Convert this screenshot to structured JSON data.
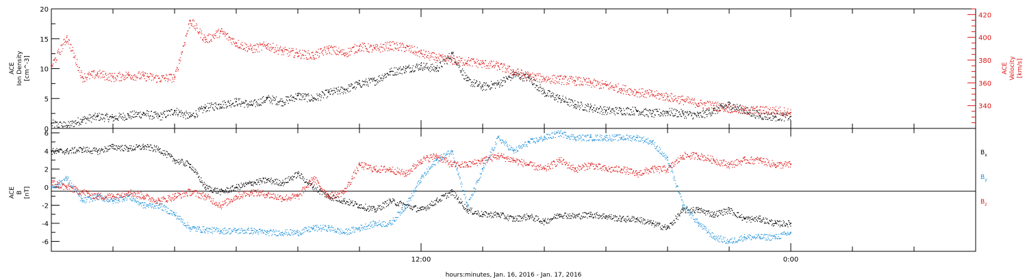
{
  "chart_data": [
    {
      "type": "scatter",
      "panel": "top",
      "ylabel_left": [
        "ACE",
        "Ion Density",
        "[cm^-3]"
      ],
      "ylabel_right": [
        "ACE",
        "Velocity",
        "[km/s]"
      ],
      "x_unit": "hours from 2016-01-16 00:00",
      "xlim": [
        0,
        30
      ],
      "ylim_left": [
        0,
        20
      ],
      "ylim_right": [
        320,
        425
      ],
      "left_ticks": [
        0,
        5,
        10,
        15,
        20
      ],
      "right_ticks": [
        340,
        360,
        380,
        400,
        420
      ],
      "series": [
        {
          "axis": "left",
          "color": "#000000",
          "x": [
            0,
            0.5,
            1,
            1.5,
            2,
            2.5,
            3,
            3.5,
            4,
            4.5,
            5,
            5.5,
            6,
            6.5,
            7,
            7.5,
            8,
            8.5,
            9,
            9.5,
            10,
            10.5,
            11,
            11.5,
            12,
            12.5,
            13,
            13.5,
            14,
            14.5,
            15,
            15.5,
            16,
            16.5,
            17,
            17.5,
            18,
            18.5,
            19,
            19.5,
            20,
            20.5,
            21,
            21.5,
            22,
            22.5,
            23,
            23.5,
            24
          ],
          "y": [
            0.8,
            0.5,
            1.5,
            2,
            1.8,
            2.2,
            2.5,
            2,
            3,
            2,
            3.5,
            4,
            4.5,
            4,
            5,
            4.5,
            5.5,
            5,
            6,
            6.5,
            7.5,
            8,
            9.5,
            10,
            10.5,
            10,
            12.5,
            8,
            7,
            7.5,
            9,
            8.5,
            6,
            5,
            4,
            3.5,
            3,
            3,
            3,
            2.5,
            2.8,
            2.5,
            2.2,
            3,
            4,
            3,
            2.2,
            2,
            2
          ]
        },
        {
          "axis": "right",
          "color": "#dd1111",
          "x": [
            0,
            0.5,
            1,
            1.5,
            2,
            2.5,
            3,
            3.5,
            4,
            4.5,
            5,
            5.5,
            6,
            6.5,
            7,
            7.5,
            8,
            8.5,
            9,
            9.5,
            10,
            10.5,
            11,
            11.5,
            12,
            12.5,
            13,
            13.5,
            14,
            14.5,
            15,
            15.5,
            16,
            16.5,
            17,
            17.5,
            18,
            18.5,
            19,
            19.5,
            20,
            20.5,
            21,
            21.5,
            22,
            22.5,
            23,
            23.5,
            24
          ],
          "y": [
            375,
            400,
            365,
            368,
            365,
            367,
            366,
            364,
            365,
            415,
            398,
            405,
            395,
            390,
            393,
            388,
            386,
            384,
            390,
            386,
            392,
            390,
            393,
            391,
            386,
            382,
            380,
            379,
            377,
            375,
            370,
            366,
            364,
            363,
            362,
            360,
            358,
            355,
            352,
            350,
            348,
            345,
            342,
            340,
            338,
            336,
            336,
            336,
            334
          ]
        }
      ]
    },
    {
      "type": "scatter",
      "panel": "bottom",
      "ylabel": [
        "ACE",
        "B",
        "[nT]"
      ],
      "x_unit": "hours from 2016-01-16 00:00",
      "xlim": [
        0,
        30
      ],
      "ylim": [
        -7.1,
        6.5
      ],
      "y_ticks": [
        -6,
        -4,
        -2,
        0,
        2,
        4,
        6
      ],
      "zero_line": true,
      "legend": [
        "B",
        "B",
        "B"
      ],
      "legend_sub": [
        "x",
        "y",
        "z"
      ],
      "series": [
        {
          "name": "Bx",
          "color": "#000000",
          "x": [
            0,
            0.5,
            1,
            1.5,
            2,
            2.5,
            3,
            3.5,
            4,
            4.5,
            5,
            5.5,
            6,
            6.5,
            7,
            7.5,
            8,
            8.5,
            9,
            9.5,
            10,
            10.5,
            11,
            11.5,
            12,
            12.5,
            13,
            13.5,
            14,
            14.5,
            15,
            15.5,
            16,
            16.5,
            17,
            17.5,
            18,
            18.5,
            19,
            19.5,
            20,
            20.5,
            21,
            21.5,
            22,
            22.5,
            23,
            23.5,
            24
          ],
          "y": [
            4,
            4,
            4.2,
            4,
            4.5,
            4.3,
            4.5,
            4.2,
            3,
            2.5,
            0,
            -0.5,
            0,
            0.5,
            0.8,
            0.5,
            1.5,
            0,
            -1,
            -1.5,
            -2,
            -2.5,
            -1.5,
            -2,
            -2.5,
            -1.5,
            -0.5,
            -2.5,
            -3,
            -3,
            -3.5,
            -3.2,
            -3.8,
            -3,
            -3.2,
            -3,
            -3.2,
            -3.5,
            -3.5,
            -4,
            -4.5,
            -2.5,
            -2.5,
            -3,
            -2.5,
            -3.5,
            -3.5,
            -4,
            -4
          ]
        },
        {
          "name": "By",
          "color": "#1a8fd8",
          "x": [
            0,
            0.5,
            1,
            1.5,
            2,
            2.5,
            3,
            3.5,
            4,
            4.5,
            5,
            5.5,
            6,
            6.5,
            7,
            7.5,
            8,
            8.5,
            9,
            9.5,
            10,
            10.5,
            11,
            11.5,
            12,
            12.5,
            13,
            13.5,
            14,
            14.5,
            15,
            15.5,
            16,
            16.5,
            17,
            17.5,
            18,
            18.5,
            19,
            19.5,
            20,
            20.5,
            21,
            21.5,
            22,
            22.5,
            23,
            23.5,
            24
          ],
          "y": [
            0,
            1,
            -1.5,
            -1,
            -1.5,
            -1,
            -2,
            -2,
            -3,
            -4.5,
            -4.7,
            -4.8,
            -4.8,
            -4.8,
            -5,
            -5,
            -5,
            -4.5,
            -4.5,
            -5,
            -4.5,
            -4,
            -4,
            -2,
            1,
            3,
            4,
            -2,
            2,
            5.5,
            4,
            5,
            5.5,
            6,
            5.5,
            5.5,
            5.5,
            5.5,
            5.5,
            5,
            3,
            -2,
            -4,
            -5.5,
            -6,
            -5.5,
            -5.5,
            -5.5,
            -5
          ]
        },
        {
          "name": "Bz",
          "color": "#dd1111",
          "x": [
            0,
            0.5,
            1,
            1.5,
            2,
            2.5,
            3,
            3.5,
            4,
            4.5,
            5,
            5.5,
            6,
            6.5,
            7,
            7.5,
            8,
            8.5,
            9,
            9.5,
            10,
            10.5,
            11,
            11.5,
            12,
            12.5,
            13,
            13.5,
            14,
            14.5,
            15,
            15.5,
            16,
            16.5,
            17,
            17.5,
            18,
            18.5,
            19,
            19.5,
            20,
            20.5,
            21,
            21.5,
            22,
            22.5,
            23,
            23.5,
            24
          ],
          "y": [
            0.5,
            0,
            -0.5,
            -1,
            -1,
            -0.5,
            -1,
            -1.5,
            -1,
            -0.5,
            -1,
            -2,
            -1,
            -0.5,
            -0.8,
            -1.2,
            -1,
            1,
            -1,
            -0.5,
            2.5,
            2,
            2,
            1.5,
            3,
            3.5,
            2.5,
            2.5,
            3,
            3.5,
            3,
            2.5,
            2,
            3,
            2,
            2.5,
            2,
            2,
            1.5,
            2,
            2,
            3.5,
            3.5,
            3,
            2.5,
            3,
            3,
            2.5,
            2.5
          ]
        }
      ]
    }
  ],
  "x_tick_labels": [
    "12:00",
    "0:00"
  ],
  "x_tick_label_hours": [
    12,
    24
  ],
  "xlabel": "hours:minutes, Jan. 16, 2016 - Jan. 17, 2016",
  "colors": {
    "density": "#000000",
    "velocity": "#dd1111",
    "bx": "#000000",
    "by": "#1a8fd8",
    "bz": "#dd1111"
  }
}
